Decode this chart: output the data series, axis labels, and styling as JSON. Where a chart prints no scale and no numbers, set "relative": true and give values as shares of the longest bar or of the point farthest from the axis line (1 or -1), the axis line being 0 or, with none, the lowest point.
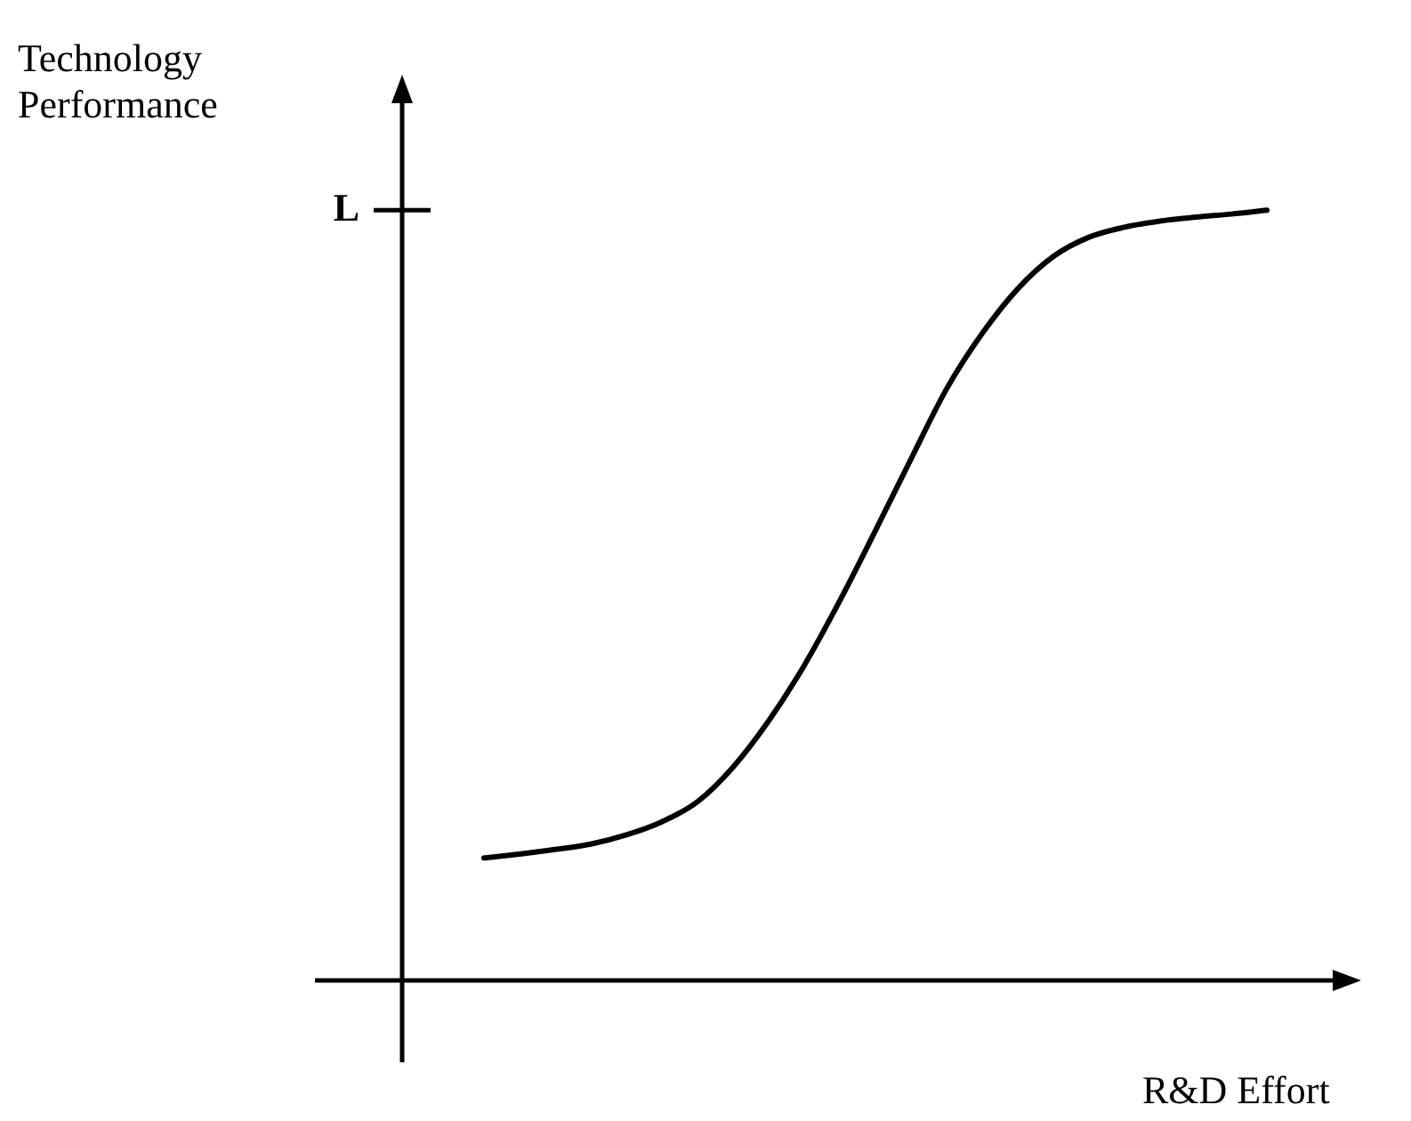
{
  "chart_data": {
    "type": "line",
    "relative": true,
    "xlabel": "R&D Effort",
    "annotations": [
      "Technology\nPerformance",
      "L"
    ],
    "categories": [
      null,
      null,
      null,
      null,
      null,
      null,
      null,
      null,
      null,
      null,
      null,
      null,
      null,
      null,
      null,
      null,
      null,
      null,
      null,
      null,
      null,
      null,
      null
    ],
    "series": [
      {
        "color": "#000000",
        "values": [
          0.159,
          0.164,
          0.17,
          0.177,
          0.189,
          0.206,
          0.232,
          0.277,
          0.337,
          0.409,
          0.493,
          0.584,
          0.677,
          0.768,
          0.84,
          0.898,
          0.94,
          0.965,
          0.978,
          0.986,
          0.991,
          0.995,
          1.0
        ]
      }
    ],
    "marker": "none",
    "line_style": "solid"
  }
}
